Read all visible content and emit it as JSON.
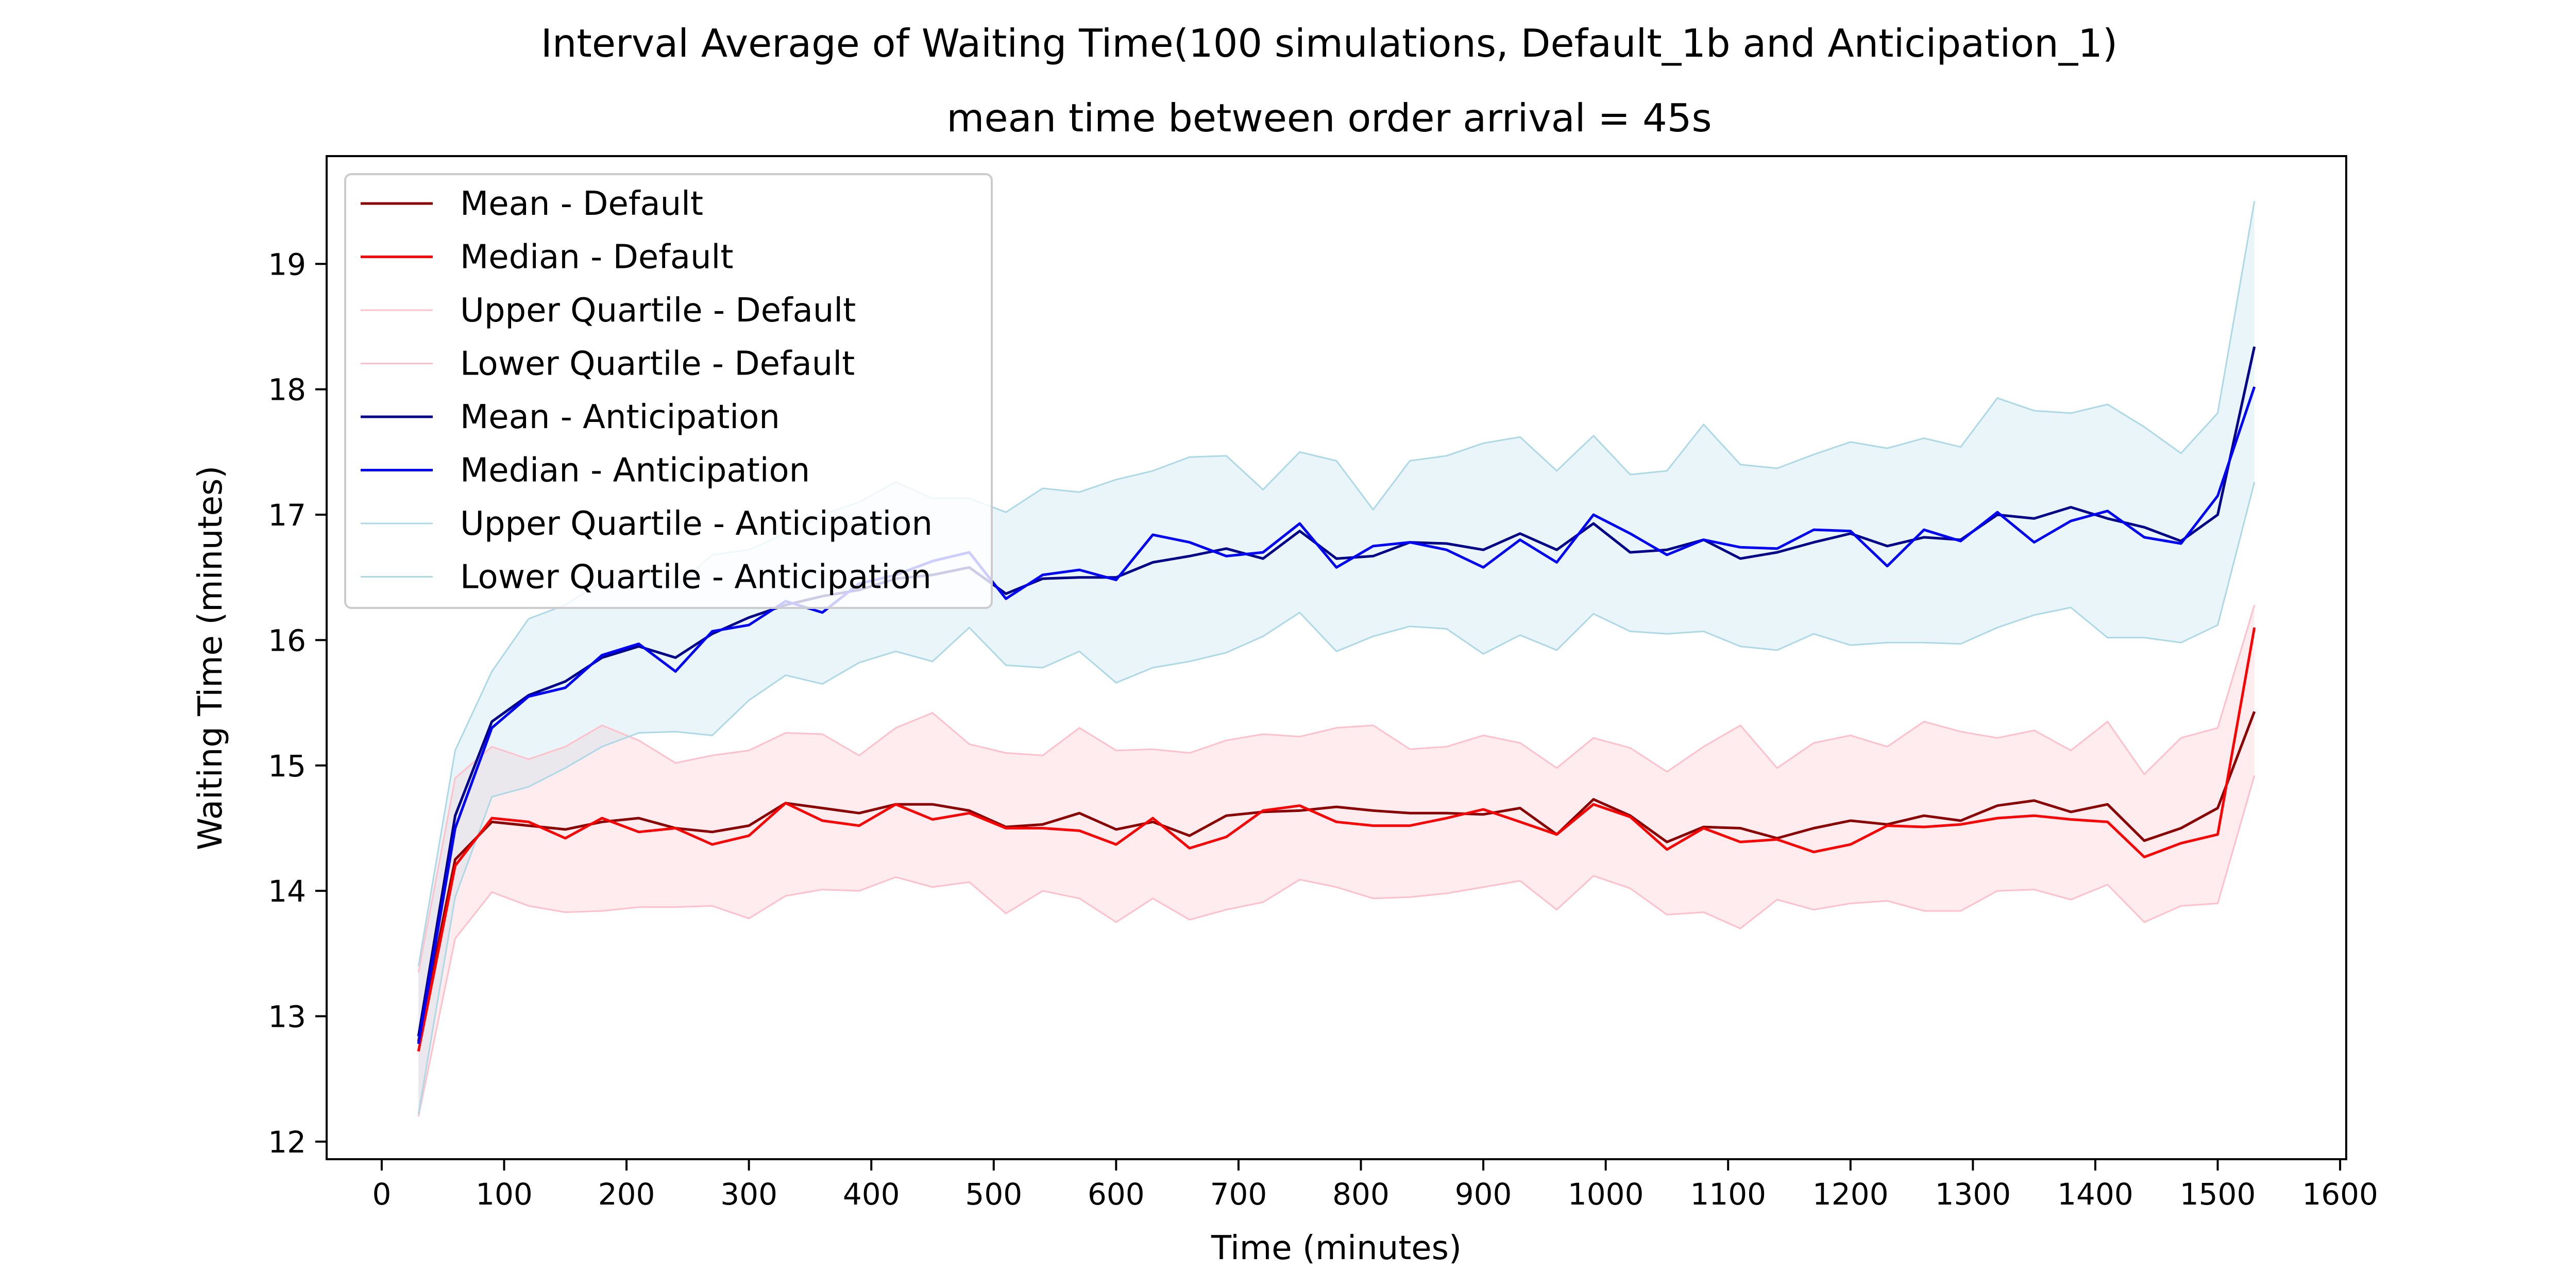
{
  "chart_data": {
    "type": "line",
    "title": "Interval Average of Waiting Time(100 simulations, Default_1b and Anticipation_1)",
    "subtitle": "mean time between order arrival = 45s",
    "xlabel": "Time (minutes)",
    "ylabel": "Waiting Time (minutes)",
    "xlim": [
      -45,
      1605
    ],
    "ylim": [
      11.86,
      19.86
    ],
    "xticks": [
      0,
      100,
      200,
      300,
      400,
      500,
      600,
      700,
      800,
      900,
      1000,
      1100,
      1200,
      1300,
      1400,
      1500,
      1600
    ],
    "xtick_labels": [
      "0",
      "100",
      "200",
      "300",
      "400",
      "500",
      "600",
      "700",
      "800",
      "900",
      "1000",
      "1100",
      "1200",
      "1300",
      "1400",
      "1500",
      "1600"
    ],
    "yticks": [
      12,
      13,
      14,
      15,
      16,
      17,
      18,
      19
    ],
    "ytick_labels": [
      "12",
      "13",
      "14",
      "15",
      "16",
      "17",
      "18",
      "19"
    ],
    "grid": false,
    "legend_position": "top-left",
    "bands": [
      {
        "lower_series": "Lower Quartile - Default",
        "upper_series": "Upper Quartile - Default",
        "fill": "#ffc0cb",
        "opacity": 0.3
      },
      {
        "lower_series": "Lower Quartile - Anticipation",
        "upper_series": "Upper Quartile - Anticipation",
        "fill": "#add8e6",
        "opacity": 0.25
      }
    ],
    "x": [
      30,
      60,
      90,
      120,
      150,
      180,
      210,
      240,
      270,
      300,
      330,
      360,
      390,
      420,
      450,
      480,
      510,
      540,
      570,
      600,
      630,
      660,
      690,
      720,
      750,
      780,
      810,
      840,
      870,
      900,
      930,
      960,
      990,
      1020,
      1050,
      1080,
      1110,
      1140,
      1170,
      1200,
      1230,
      1260,
      1290,
      1320,
      1350,
      1380,
      1410,
      1440,
      1470,
      1500,
      1530
    ],
    "series": [
      {
        "name": "Mean - Default",
        "color": "#8b0000",
        "width": 5,
        "values": [
          12.8,
          14.25,
          14.55,
          14.52,
          14.49,
          14.55,
          14.58,
          14.5,
          14.47,
          14.52,
          14.7,
          14.66,
          14.62,
          14.69,
          14.69,
          14.64,
          14.51,
          14.53,
          14.62,
          14.49,
          14.55,
          14.44,
          14.6,
          14.63,
          14.64,
          14.67,
          14.64,
          14.62,
          14.62,
          14.61,
          14.66,
          14.45,
          14.73,
          14.6,
          14.39,
          14.51,
          14.5,
          14.42,
          14.5,
          14.56,
          14.53,
          14.6,
          14.56,
          14.68,
          14.72,
          14.63,
          14.69,
          14.4,
          14.5,
          14.66,
          15.43
        ]
      },
      {
        "name": "Median - Default",
        "color": "#ff0000",
        "width": 5,
        "values": [
          12.72,
          14.2,
          14.58,
          14.55,
          14.42,
          14.58,
          14.47,
          14.5,
          14.37,
          14.44,
          14.7,
          14.56,
          14.52,
          14.69,
          14.57,
          14.62,
          14.5,
          14.5,
          14.48,
          14.37,
          14.58,
          14.34,
          14.43,
          14.64,
          14.68,
          14.55,
          14.52,
          14.52,
          14.58,
          14.65,
          14.55,
          14.45,
          14.69,
          14.59,
          14.33,
          14.5,
          14.39,
          14.41,
          14.31,
          14.37,
          14.52,
          14.51,
          14.53,
          14.58,
          14.6,
          14.57,
          14.55,
          14.27,
          14.38,
          14.45,
          16.1
        ]
      },
      {
        "name": "Upper Quartile - Default",
        "color": "#ffc0cb",
        "width": 3,
        "values": [
          13.35,
          14.9,
          15.15,
          15.05,
          15.15,
          15.32,
          15.2,
          15.02,
          15.08,
          15.12,
          15.26,
          15.25,
          15.08,
          15.3,
          15.42,
          15.17,
          15.1,
          15.08,
          15.3,
          15.12,
          15.13,
          15.1,
          15.2,
          15.25,
          15.23,
          15.3,
          15.32,
          15.13,
          15.15,
          15.24,
          15.18,
          14.98,
          15.22,
          15.14,
          14.95,
          15.15,
          15.32,
          14.98,
          15.18,
          15.24,
          15.15,
          15.35,
          15.27,
          15.22,
          15.28,
          15.12,
          15.35,
          14.93,
          15.22,
          15.3,
          16.28
        ]
      },
      {
        "name": "Lower Quartile - Default",
        "color": "#ffc0cb",
        "width": 3,
        "values": [
          12.2,
          13.62,
          13.99,
          13.88,
          13.83,
          13.84,
          13.87,
          13.87,
          13.88,
          13.78,
          13.96,
          14.01,
          14.0,
          14.11,
          14.03,
          14.07,
          13.82,
          14.0,
          13.94,
          13.75,
          13.94,
          13.77,
          13.85,
          13.91,
          14.09,
          14.03,
          13.94,
          13.95,
          13.98,
          14.03,
          14.08,
          13.85,
          14.12,
          14.02,
          13.81,
          13.83,
          13.7,
          13.93,
          13.85,
          13.9,
          13.92,
          13.84,
          13.84,
          14.0,
          14.01,
          13.93,
          14.05,
          13.75,
          13.88,
          13.9,
          14.92
        ]
      },
      {
        "name": "Mean - Anticipation",
        "color": "#00008b",
        "width": 5,
        "values": [
          12.84,
          14.6,
          15.35,
          15.56,
          15.67,
          15.86,
          15.95,
          15.86,
          16.05,
          16.18,
          16.28,
          16.35,
          16.4,
          16.49,
          16.52,
          16.58,
          16.37,
          16.49,
          16.5,
          16.5,
          16.62,
          16.67,
          16.73,
          16.65,
          16.87,
          16.65,
          16.67,
          16.78,
          16.77,
          16.72,
          16.85,
          16.72,
          16.93,
          16.7,
          16.72,
          16.8,
          16.65,
          16.7,
          16.78,
          16.85,
          16.75,
          16.82,
          16.8,
          17.0,
          16.97,
          17.06,
          16.97,
          16.9,
          16.79,
          17.0,
          18.34
        ]
      },
      {
        "name": "Median - Anticipation",
        "color": "#0000ff",
        "width": 5,
        "values": [
          12.78,
          14.5,
          15.3,
          15.55,
          15.62,
          15.88,
          15.97,
          15.75,
          16.07,
          16.12,
          16.31,
          16.22,
          16.45,
          16.52,
          16.63,
          16.7,
          16.33,
          16.52,
          16.56,
          16.48,
          16.84,
          16.78,
          16.67,
          16.7,
          16.93,
          16.58,
          16.75,
          16.78,
          16.72,
          16.58,
          16.8,
          16.62,
          17.0,
          16.85,
          16.68,
          16.8,
          16.74,
          16.73,
          16.88,
          16.87,
          16.59,
          16.88,
          16.79,
          17.02,
          16.78,
          16.95,
          17.03,
          16.82,
          16.77,
          17.15,
          18.02
        ]
      },
      {
        "name": "Upper Quartile - Anticipation",
        "color": "#add8e6",
        "width": 3,
        "values": [
          13.4,
          15.12,
          15.75,
          16.17,
          16.28,
          16.47,
          16.52,
          16.42,
          16.68,
          16.72,
          16.85,
          17.0,
          17.1,
          17.26,
          17.13,
          17.13,
          17.02,
          17.21,
          17.18,
          17.28,
          17.35,
          17.46,
          17.47,
          17.2,
          17.5,
          17.43,
          17.04,
          17.43,
          17.47,
          17.57,
          17.62,
          17.35,
          17.63,
          17.32,
          17.35,
          17.72,
          17.4,
          17.37,
          17.48,
          17.58,
          17.53,
          17.61,
          17.54,
          17.93,
          17.83,
          17.81,
          17.88,
          17.7,
          17.49,
          17.81,
          19.5
        ]
      },
      {
        "name": "Lower Quartile - Anticipation",
        "color": "#add8e6",
        "width": 3,
        "values": [
          12.22,
          13.95,
          14.75,
          14.83,
          14.98,
          15.15,
          15.26,
          15.27,
          15.24,
          15.52,
          15.72,
          15.65,
          15.82,
          15.91,
          15.83,
          16.1,
          15.8,
          15.78,
          15.91,
          15.66,
          15.78,
          15.83,
          15.9,
          16.03,
          16.22,
          15.91,
          16.03,
          16.11,
          16.09,
          15.89,
          16.04,
          15.92,
          16.21,
          16.07,
          16.05,
          16.07,
          15.95,
          15.92,
          16.05,
          15.96,
          15.98,
          15.98,
          15.97,
          16.1,
          16.2,
          16.26,
          16.02,
          16.02,
          15.98,
          16.12,
          17.26
        ]
      }
    ]
  }
}
